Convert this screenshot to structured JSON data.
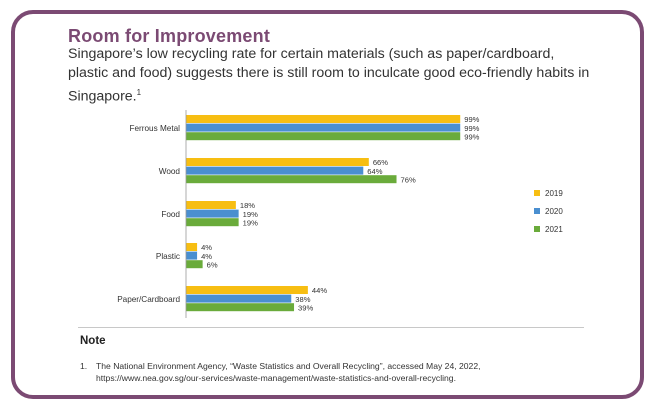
{
  "header": {
    "title": "Room for Improvement",
    "subtitle": "Singapore’s low recycling rate for certain materials (such as paper/cardboard, plastic and food) suggests there is still room to inculcate good eco-friendly habits in Singapore.",
    "subtitle_ref": "1"
  },
  "chart_data": {
    "type": "bar",
    "orientation": "horizontal",
    "categories": [
      "Ferrous Metal",
      "Wood",
      "Food",
      "Plastic",
      "Paper/Cardboard"
    ],
    "series": [
      {
        "name": "2019",
        "color": "#f7be12",
        "values": [
          99,
          66,
          18,
          4,
          44
        ],
        "labels": [
          "99%",
          "66%",
          "18%",
          "4%",
          "44%"
        ]
      },
      {
        "name": "2020",
        "color": "#4a8fd0",
        "values": [
          99,
          64,
          19,
          4,
          38
        ],
        "labels": [
          "99%",
          "64%",
          "19%",
          "4%",
          "38%"
        ]
      },
      {
        "name": "2021",
        "color": "#6aab3b",
        "values": [
          99,
          76,
          19,
          6,
          39
        ],
        "labels": [
          "99%",
          "76%",
          "19%",
          "6%",
          "39%"
        ]
      }
    ],
    "xlim": [
      0,
      100
    ],
    "unit": "%",
    "grid": false,
    "legend_position": "right"
  },
  "note": {
    "heading": "Note",
    "number": "1.",
    "text_line1": "The National Environment Agency, “Waste Statistics and Overall Recycling”, accessed May 24, 2022,",
    "text_line2": "https://www.nea.gov.sg/our-services/waste-management/waste-statistics-and-overall-recycling."
  }
}
